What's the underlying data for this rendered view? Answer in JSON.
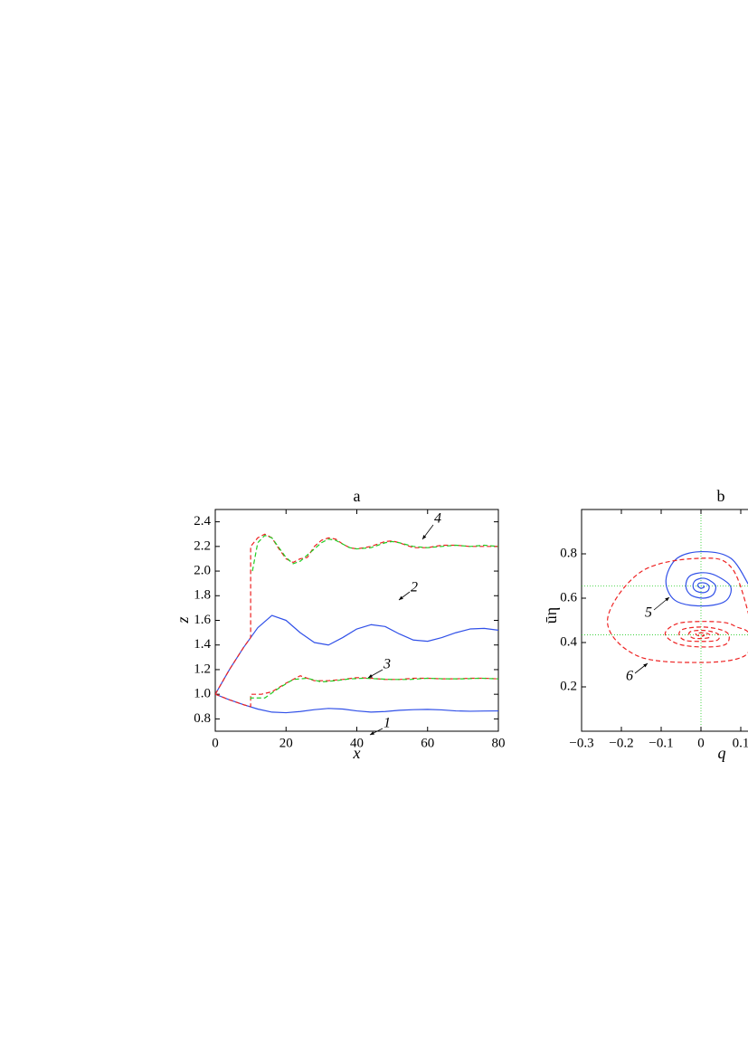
{
  "chart_data": [
    {
      "type": "line",
      "title": "a",
      "xlabel": "x",
      "ylabel": "z",
      "xlim": [
        0,
        80
      ],
      "ylim": [
        0.7,
        2.5
      ],
      "xticks": [
        0,
        20,
        40,
        60,
        80
      ],
      "yticks": [
        0.8,
        {
          "value": 1,
          "label": "1.0"
        },
        1.2,
        1.4,
        1.6,
        1.8,
        {
          "value": 2,
          "label": "2.0"
        },
        2.2,
        2.4
      ],
      "series": [
        {
          "color": "#3050e8",
          "dash": false,
          "x": [
            0,
            4,
            8,
            12,
            16,
            20,
            24,
            28,
            32,
            36,
            40,
            44,
            48,
            52,
            56,
            60,
            64,
            68,
            72,
            76,
            80
          ],
          "values": [
            1.0,
            0.955,
            0.915,
            0.88,
            0.855,
            0.85,
            0.86,
            0.875,
            0.885,
            0.88,
            0.865,
            0.855,
            0.86,
            0.87,
            0.875,
            0.877,
            0.873,
            0.865,
            0.862,
            0.864,
            0.865
          ]
        },
        {
          "color": "#3050e8",
          "dash": false,
          "x": [
            0,
            4,
            8,
            12,
            16,
            20,
            24,
            28,
            32,
            36,
            40,
            44,
            48,
            52,
            56,
            60,
            64,
            68,
            72,
            76,
            80
          ],
          "values": [
            1.0,
            1.2,
            1.38,
            1.54,
            1.64,
            1.6,
            1.5,
            1.42,
            1.4,
            1.46,
            1.53,
            1.565,
            1.55,
            1.49,
            1.44,
            1.43,
            1.46,
            1.5,
            1.53,
            1.535,
            1.52
          ]
        },
        {
          "color": "#ee2222",
          "dash": true,
          "x": [
            0,
            4,
            8,
            10,
            10,
            13,
            16,
            20,
            24,
            28,
            32,
            36,
            40,
            44,
            48,
            52,
            56,
            60,
            64,
            68,
            72,
            76,
            80
          ],
          "values": [
            1.0,
            0.955,
            0.915,
            0.9,
            1.0,
            1.0,
            1.02,
            1.09,
            1.15,
            1.11,
            1.11,
            1.12,
            1.135,
            1.13,
            1.12,
            1.12,
            1.13,
            1.13,
            1.125,
            1.125,
            1.13,
            1.13,
            1.125
          ]
        },
        {
          "color": "#22cc22",
          "dash": true,
          "x": [
            10,
            10,
            14,
            18,
            22,
            26,
            30,
            34,
            38,
            42,
            46,
            50,
            55,
            60,
            65,
            70,
            75,
            80
          ],
          "values": [
            0.96,
            0.97,
            0.97,
            1.05,
            1.12,
            1.13,
            1.1,
            1.11,
            1.125,
            1.13,
            1.125,
            1.12,
            1.12,
            1.13,
            1.125,
            1.125,
            1.13,
            1.125
          ]
        },
        {
          "color": "#ee2222",
          "dash": true,
          "x": [
            0,
            4,
            8,
            10,
            10,
            12,
            14,
            16,
            18,
            20,
            22,
            24,
            26,
            28,
            30,
            32,
            34,
            36,
            38,
            40,
            44,
            48,
            50,
            52,
            56,
            60,
            64,
            68,
            72,
            76,
            80
          ],
          "values": [
            1.0,
            1.2,
            1.38,
            1.46,
            2.2,
            2.27,
            2.3,
            2.27,
            2.18,
            2.1,
            2.07,
            2.1,
            2.11,
            2.2,
            2.25,
            2.27,
            2.26,
            2.22,
            2.19,
            2.18,
            2.2,
            2.24,
            2.245,
            2.23,
            2.19,
            2.19,
            2.21,
            2.21,
            2.2,
            2.2,
            2.2
          ]
        },
        {
          "color": "#22cc22",
          "dash": true,
          "x": [
            10.5,
            12,
            14,
            16,
            18,
            20,
            22,
            24,
            26,
            28,
            30,
            32,
            34,
            36,
            38,
            40,
            44,
            48,
            50,
            52,
            56,
            60,
            64,
            68,
            72,
            76,
            80
          ],
          "values": [
            2.0,
            2.23,
            2.29,
            2.27,
            2.19,
            2.11,
            2.06,
            2.08,
            2.13,
            2.18,
            2.23,
            2.26,
            2.25,
            2.22,
            2.19,
            2.18,
            2.19,
            2.23,
            2.24,
            2.23,
            2.2,
            2.19,
            2.2,
            2.21,
            2.2,
            2.21,
            2.2
          ]
        }
      ],
      "annotations": [
        {
          "text": "1"
        },
        {
          "text": "2"
        },
        {
          "text": "3"
        },
        {
          "text": "4"
        }
      ]
    },
    {
      "type": "phase",
      "title": "b",
      "xlabel": "q",
      "ylabel": "ūη",
      "xlim": [
        -0.3,
        0.3
      ],
      "ylim": [
        0,
        1
      ],
      "xticks": [
        {
          "value": -0.3,
          "label": "−0.3"
        },
        {
          "value": -0.2,
          "label": "−0.2"
        },
        {
          "value": -0.1,
          "label": "−0.1"
        },
        0,
        0.1
      ],
      "yticks": [
        0.2,
        0.4,
        0.6,
        0.8
      ],
      "ref_lines": {
        "color": "#22cc22",
        "x": [
          0
        ],
        "y": [
          0.655,
          0.435
        ]
      },
      "series": [
        {
          "color": "#3050e8",
          "dash": false,
          "x": [
            0.12,
            0.075,
            0.005,
            -0.06,
            -0.088,
            -0.065,
            0.0,
            0.06,
            0.075,
            0.04,
            0.005,
            -0.028,
            -0.038,
            -0.026,
            0.005,
            0.03,
            0.037,
            0.022,
            0.005,
            -0.014,
            -0.02,
            -0.013,
            0.005,
            0.018,
            0.02,
            0.01,
            -0.004,
            -0.008,
            0,
            0.008,
            0.005
          ],
          "values": [
            0.66,
            0.78,
            0.81,
            0.78,
            0.68,
            0.59,
            0.565,
            0.585,
            0.65,
            0.7,
            0.715,
            0.7,
            0.655,
            0.615,
            0.6,
            0.615,
            0.655,
            0.68,
            0.69,
            0.68,
            0.655,
            0.633,
            0.625,
            0.635,
            0.655,
            0.668,
            0.668,
            0.655,
            0.645,
            0.65,
            0.656
          ]
        },
        {
          "color": "#ee2222",
          "dash": true,
          "x": [
            0.13,
            0.08,
            0.0,
            -0.15,
            -0.235,
            -0.16,
            0,
            0.11,
            0.12,
            0.09,
            0.06,
            0,
            -0.06,
            -0.09,
            -0.06,
            0,
            0.06,
            0.07,
            0.045,
            0,
            -0.045,
            -0.055,
            -0.04,
            0,
            0.04,
            0.045,
            0.025,
            0,
            -0.025,
            -0.03,
            -0.02,
            0,
            0.02,
            0.022,
            0.01,
            -0.01,
            -0.012,
            0,
            0.008,
            0.002
          ],
          "values": [
            0.46,
            0.73,
            0.78,
            0.72,
            0.5,
            0.34,
            0.31,
            0.34,
            0.44,
            0.47,
            0.49,
            0.495,
            0.485,
            0.44,
            0.395,
            0.38,
            0.39,
            0.435,
            0.46,
            0.47,
            0.46,
            0.435,
            0.41,
            0.405,
            0.41,
            0.435,
            0.45,
            0.455,
            0.45,
            0.435,
            0.42,
            0.418,
            0.422,
            0.435,
            0.443,
            0.442,
            0.435,
            0.428,
            0.432,
            0.435
          ]
        }
      ],
      "annotations": [
        {
          "text": "5"
        },
        {
          "text": "6"
        }
      ]
    }
  ]
}
